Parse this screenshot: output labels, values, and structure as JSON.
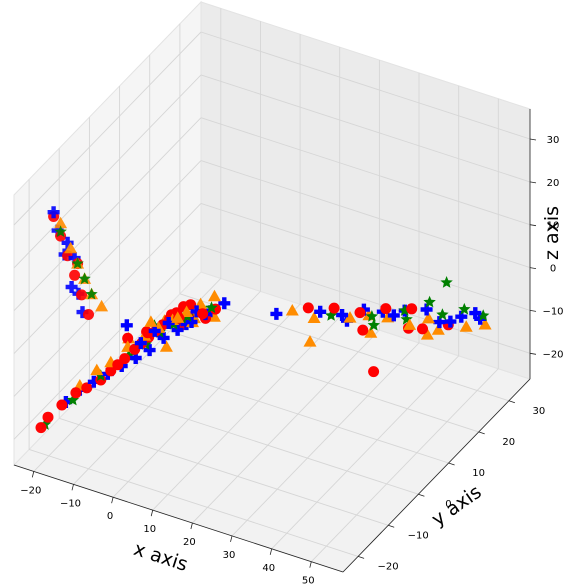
{
  "chart_data": {
    "type": "scatter3d",
    "title": "",
    "xlabel": "x axis",
    "ylabel": "y axis",
    "zlabel": "z axis",
    "xlim": [
      -25,
      58
    ],
    "ylim": [
      -25,
      37
    ],
    "zlim": [
      -26,
      37
    ],
    "xticks": [
      -20,
      -10,
      0,
      10,
      20,
      30,
      40,
      50
    ],
    "yticks": [
      -20,
      -10,
      0,
      10,
      20,
      30
    ],
    "zticks": [
      -20,
      -10,
      0,
      10,
      20,
      30
    ],
    "grid": true,
    "series": [
      {
        "marker": "circle",
        "color": "#ff0000",
        "points": [
          [
            -22,
            -20,
            -20
          ],
          [
            -21,
            -19,
            -18
          ],
          [
            -19,
            -17,
            -16
          ],
          [
            -17,
            -15,
            -14
          ],
          [
            -15,
            -14,
            -13
          ],
          [
            -13,
            -12,
            -12
          ],
          [
            -12,
            -10,
            -11
          ],
          [
            -11,
            -9,
            -10
          ],
          [
            -10,
            -8,
            -9
          ],
          [
            -9,
            -6,
            -8
          ],
          [
            -8,
            -5,
            -7
          ],
          [
            -7,
            -4,
            -6
          ],
          [
            -6,
            -3,
            -5
          ],
          [
            -5,
            -2,
            -4
          ],
          [
            -4,
            -1,
            -3
          ],
          [
            -3,
            0,
            -2
          ],
          [
            -2,
            1,
            -1
          ],
          [
            -1,
            2,
            -1
          ],
          [
            -10,
            -7,
            -5
          ],
          [
            -8,
            -3,
            -6
          ],
          [
            -6,
            -6,
            -3
          ],
          [
            -4,
            2,
            -5
          ],
          [
            -2,
            -3,
            0
          ],
          [
            0,
            0,
            -2
          ],
          [
            2,
            3,
            -4
          ],
          [
            -1,
            6,
            -6
          ],
          [
            1,
            -4,
            -1
          ],
          [
            3,
            5,
            -3
          ],
          [
            -10,
            -20,
            10
          ],
          [
            -12,
            -22,
            20
          ],
          [
            -14,
            -24,
            30
          ],
          [
            -11,
            -21,
            15
          ],
          [
            -13,
            -23,
            25
          ],
          [
            -15,
            -25,
            35
          ],
          [
            -12,
            -21,
            22
          ],
          [
            15,
            20,
            -10
          ],
          [
            20,
            22,
            -10
          ],
          [
            25,
            24,
            -11
          ],
          [
            30,
            26,
            -10
          ],
          [
            35,
            28,
            -10
          ],
          [
            40,
            25,
            -11
          ],
          [
            45,
            27,
            -10
          ],
          [
            33,
            18,
            -18
          ],
          [
            28,
            21,
            -12
          ],
          [
            38,
            23,
            -10
          ]
        ]
      },
      {
        "marker": "plus",
        "color": "#0000ff",
        "points": [
          [
            -18,
            -17,
            -15
          ],
          [
            -16,
            -15,
            -13
          ],
          [
            -14,
            -13,
            -12
          ],
          [
            -12,
            -11,
            -11
          ],
          [
            -10,
            -9,
            -10
          ],
          [
            -8,
            -7,
            -9
          ],
          [
            -6,
            -5,
            -8
          ],
          [
            -4,
            -3,
            -6
          ],
          [
            -2,
            -1,
            -5
          ],
          [
            0,
            1,
            -4
          ],
          [
            2,
            3,
            -3
          ],
          [
            -9,
            -4,
            -8
          ],
          [
            -7,
            -2,
            -6
          ],
          [
            -5,
            0,
            -5
          ],
          [
            -3,
            -6,
            -2
          ],
          [
            -1,
            4,
            -4
          ],
          [
            1,
            -2,
            -2
          ],
          [
            -11,
            -6,
            -3
          ],
          [
            4,
            2,
            -1
          ],
          [
            6,
            4,
            0
          ],
          [
            -10,
            -22,
            12
          ],
          [
            -12,
            -23,
            18
          ],
          [
            -13,
            -24,
            26
          ],
          [
            -11,
            -22,
            16
          ],
          [
            -14,
            -25,
            32
          ],
          [
            -15,
            -25,
            36
          ],
          [
            -12,
            -22,
            24
          ],
          [
            -13,
            -23,
            28
          ],
          [
            10,
            16,
            -10
          ],
          [
            18,
            20,
            -10
          ],
          [
            22,
            22,
            -11
          ],
          [
            26,
            24,
            -10
          ],
          [
            30,
            25,
            -10
          ],
          [
            34,
            27,
            -10
          ],
          [
            38,
            29,
            -10
          ],
          [
            42,
            28,
            -11
          ],
          [
            46,
            30,
            -10
          ],
          [
            50,
            31,
            -10
          ],
          [
            24,
            21,
            -11
          ],
          [
            32,
            26,
            -11
          ],
          [
            44,
            29,
            -11
          ],
          [
            48,
            32,
            -10
          ]
        ]
      },
      {
        "marker": "triangle",
        "color": "#ff8c00",
        "points": [
          [
            -16,
            -15,
            -12
          ],
          [
            -14,
            -12,
            -10
          ],
          [
            -12,
            -10,
            -9
          ],
          [
            -10,
            -7,
            -7
          ],
          [
            -8,
            -4,
            -6
          ],
          [
            -6,
            -2,
            -5
          ],
          [
            -4,
            0,
            -4
          ],
          [
            -2,
            2,
            -3
          ],
          [
            0,
            4,
            -2
          ],
          [
            2,
            6,
            -1
          ],
          [
            -9,
            -8,
            -4
          ],
          [
            -5,
            3,
            -6
          ],
          [
            -3,
            -4,
            -1
          ],
          [
            1,
            0,
            -3
          ],
          [
            3,
            -2,
            0
          ],
          [
            5,
            2,
            -2
          ],
          [
            -11,
            2,
            -8
          ],
          [
            -1,
            -6,
            -5
          ],
          [
            -9,
            -17,
            10
          ],
          [
            -11,
            -20,
            18
          ],
          [
            -13,
            -22,
            26
          ],
          [
            -14,
            -24,
            33
          ],
          [
            -10,
            -19,
            14
          ],
          [
            -12,
            -21,
            22
          ],
          [
            14,
            16,
            -8
          ],
          [
            18,
            18,
            -10
          ],
          [
            24,
            22,
            -11
          ],
          [
            28,
            23,
            -10
          ],
          [
            32,
            24,
            -10
          ],
          [
            36,
            26,
            -12
          ],
          [
            40,
            27,
            -10
          ],
          [
            44,
            25,
            -10
          ],
          [
            48,
            29,
            -11
          ],
          [
            52,
            30,
            -10
          ],
          [
            30,
            21,
            -12
          ],
          [
            42,
            24,
            -11
          ],
          [
            20,
            14,
            -12
          ]
        ]
      },
      {
        "marker": "star",
        "color": "#008000",
        "points": [
          [
            -21,
            -20,
            -19
          ],
          [
            -17,
            -16,
            -15
          ],
          [
            -13,
            -12,
            -11
          ],
          [
            -9,
            -8,
            -8
          ],
          [
            -7,
            -5,
            -7
          ],
          [
            -5,
            -3,
            -5
          ],
          [
            -3,
            -1,
            -4
          ],
          [
            -1,
            1,
            -3
          ],
          [
            1,
            3,
            -2
          ],
          [
            -4,
            -6,
            -1
          ],
          [
            0,
            -2,
            -1
          ],
          [
            2,
            5,
            -3
          ],
          [
            -10,
            -19,
            14
          ],
          [
            -12,
            -21,
            22
          ],
          [
            -14,
            -24,
            31
          ],
          [
            -11,
            -20,
            18
          ],
          [
            20,
            21,
            -11
          ],
          [
            28,
            24,
            -11
          ],
          [
            34,
            27,
            -10
          ],
          [
            38,
            30,
            -9
          ],
          [
            42,
            29,
            -10
          ],
          [
            46,
            31,
            -9
          ],
          [
            50,
            32,
            -10
          ],
          [
            40,
            33,
            -6
          ],
          [
            30,
            22,
            -11
          ],
          [
            36,
            25,
            -10
          ]
        ]
      }
    ]
  }
}
